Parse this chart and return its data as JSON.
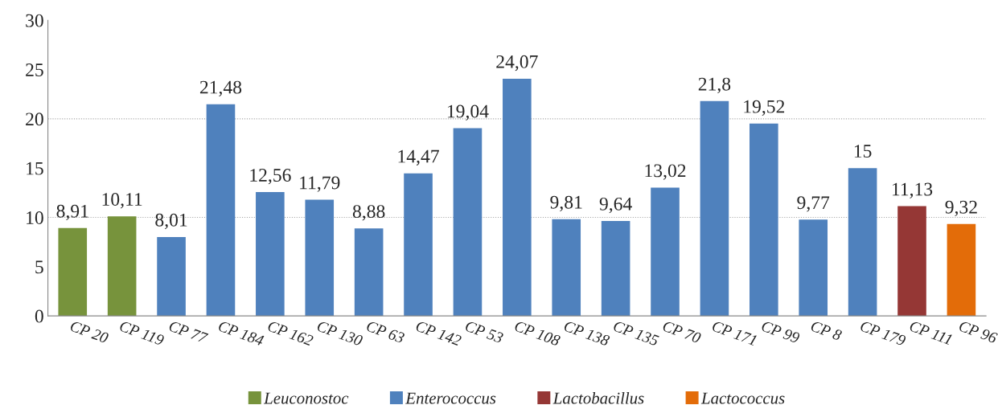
{
  "chart_data": {
    "type": "bar",
    "stacked": true,
    "categories": [
      "CP 20",
      "CP 119",
      "CP 77",
      "CP 184",
      "CP 162",
      "CP 130",
      "CP 63",
      "CP 142",
      "CP 53",
      "CP 108",
      "CP 138",
      "CP 135",
      "CP 70",
      "CP 171",
      "CP 99",
      "CP 8",
      "CP 179",
      "CP 111",
      "CP 96"
    ],
    "series": [
      {
        "name": "Leuconostoc",
        "color": "#77933c",
        "values": [
          8.91,
          10.11,
          null,
          null,
          null,
          null,
          null,
          null,
          null,
          null,
          null,
          null,
          null,
          null,
          null,
          null,
          null,
          null,
          null
        ],
        "value_labels": [
          "8,91",
          "10,11",
          null,
          null,
          null,
          null,
          null,
          null,
          null,
          null,
          null,
          null,
          null,
          null,
          null,
          null,
          null,
          null,
          null
        ]
      },
      {
        "name": "Enterococcus",
        "color": "#4f81bd",
        "values": [
          null,
          null,
          8.01,
          21.48,
          12.56,
          11.79,
          8.88,
          14.47,
          19.04,
          24.07,
          9.81,
          9.64,
          13.02,
          21.8,
          19.52,
          9.77,
          15,
          null,
          null
        ],
        "value_labels": [
          null,
          null,
          "8,01",
          "21,48",
          "12,56",
          "11,79",
          "8,88",
          "14,47",
          "19,04",
          "24,07",
          "9,81",
          "9,64",
          "13,02",
          "21,8",
          "19,52",
          "9,77",
          "15",
          null,
          null
        ]
      },
      {
        "name": "Lactobacillus",
        "color": "#953735",
        "values": [
          null,
          null,
          null,
          null,
          null,
          null,
          null,
          null,
          null,
          null,
          null,
          null,
          null,
          null,
          null,
          null,
          null,
          11.13,
          null
        ],
        "value_labels": [
          null,
          null,
          null,
          null,
          null,
          null,
          null,
          null,
          null,
          null,
          null,
          null,
          null,
          null,
          null,
          null,
          null,
          "11,13",
          null
        ]
      },
      {
        "name": "Lactococcus",
        "color": "#e36c09",
        "values": [
          null,
          null,
          null,
          null,
          null,
          null,
          null,
          null,
          null,
          null,
          null,
          null,
          null,
          null,
          null,
          null,
          null,
          null,
          9.32
        ],
        "value_labels": [
          null,
          null,
          null,
          null,
          null,
          null,
          null,
          null,
          null,
          null,
          null,
          null,
          null,
          null,
          null,
          null,
          null,
          null,
          "9,32"
        ]
      }
    ],
    "ylim": [
      0,
      30
    ],
    "yticks": [
      0,
      5,
      10,
      15,
      20,
      25,
      30
    ],
    "ref_lines": [
      {
        "axis": "y",
        "value": 10,
        "color": "#a6a6a6",
        "line_style": "dotted"
      },
      {
        "axis": "y",
        "value": 20,
        "color": "#a6a6a6",
        "line_style": "dotted"
      }
    ],
    "legend": "bottom"
  }
}
